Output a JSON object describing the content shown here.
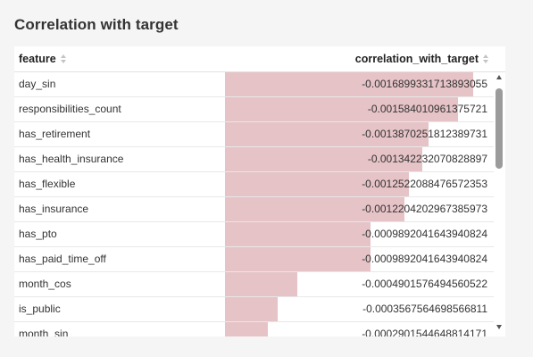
{
  "panel": {
    "title": "Correlation with target",
    "columns": {
      "feature": "feature",
      "correlation": "correlation_with_target"
    },
    "icons": {
      "sort": "sort-icon",
      "scroll_up": "scroll-up-arrow-icon",
      "scroll_down": "scroll-down-arrow-icon"
    },
    "bar_color": "#e6c3c6",
    "rows": [
      {
        "feature": "day_sin",
        "value": "-0.0016899331713893055",
        "magnitude": 0.0016899331713893055
      },
      {
        "feature": "responsibilities_count",
        "value": "-0.0015840109613757​21",
        "magnitude": 0.001584010961375721
      },
      {
        "feature": "has_retirement",
        "value": "-0.001387025181238973​1",
        "magnitude": 0.0013870251812389731
      },
      {
        "feature": "has_health_insurance",
        "value": "-0.0013422320708288​97",
        "magnitude": 0.001342232070828897
      },
      {
        "feature": "has_flexible",
        "value": "-0.0012522088476572353",
        "magnitude": 0.0012522088476572353
      },
      {
        "feature": "has_insurance",
        "value": "-0.0012204202967385973",
        "magnitude": 0.0012204202967385973
      },
      {
        "feature": "has_pto",
        "value": "-0.0009892041643940824",
        "magnitude": 0.0009892041643940824
      },
      {
        "feature": "has_paid_time_off",
        "value": "-0.0009892041643940824",
        "magnitude": 0.0009892041643940824
      },
      {
        "feature": "month_cos",
        "value": "-0.0004901576494560522",
        "magnitude": 0.0004901576494560522
      },
      {
        "feature": "is_public",
        "value": "-0.0003567564698566811",
        "magnitude": 0.0003567564698566811
      },
      {
        "feature": "month_sin",
        "value": "-0.0002901544648814171",
        "magnitude": 0.0002901544648814171
      }
    ]
  }
}
